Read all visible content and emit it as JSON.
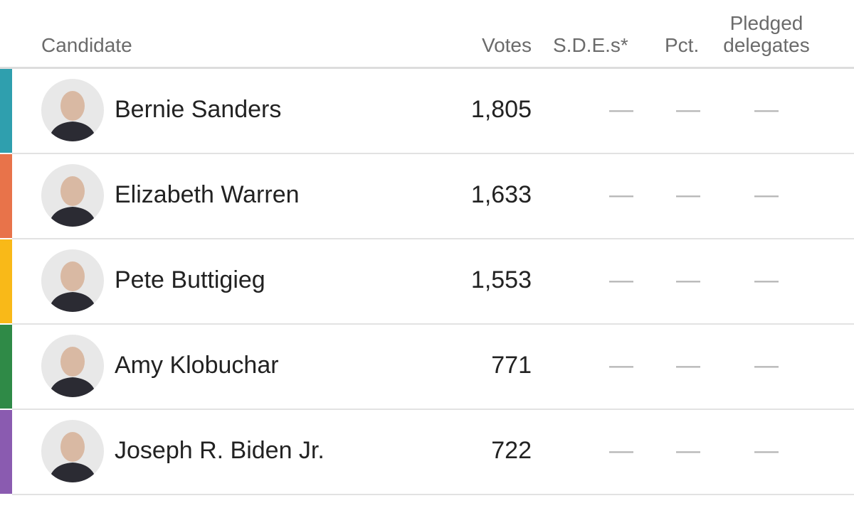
{
  "header": {
    "candidate": "Candidate",
    "votes": "Votes",
    "sdes": "S.D.E.s*",
    "pct": "Pct.",
    "pledged": "Pledged delegates"
  },
  "rows": [
    {
      "name": "Bernie Sanders",
      "votes": "1,805",
      "sdes": "—",
      "pct": "—",
      "pledged": "—",
      "color": "#2f9fae"
    },
    {
      "name": "Elizabeth Warren",
      "votes": "1,633",
      "sdes": "—",
      "pct": "—",
      "pledged": "—",
      "color": "#e8734a"
    },
    {
      "name": "Pete Buttigieg",
      "votes": "1,553",
      "sdes": "—",
      "pct": "—",
      "pledged": "—",
      "color": "#f9b918"
    },
    {
      "name": "Amy Klobuchar",
      "votes": "771",
      "sdes": "—",
      "pct": "—",
      "pledged": "—",
      "color": "#2f8a47"
    },
    {
      "name": "Joseph R. Biden Jr.",
      "votes": "722",
      "sdes": "—",
      "pct": "—",
      "pledged": "—",
      "color": "#8a5bb0"
    }
  ]
}
